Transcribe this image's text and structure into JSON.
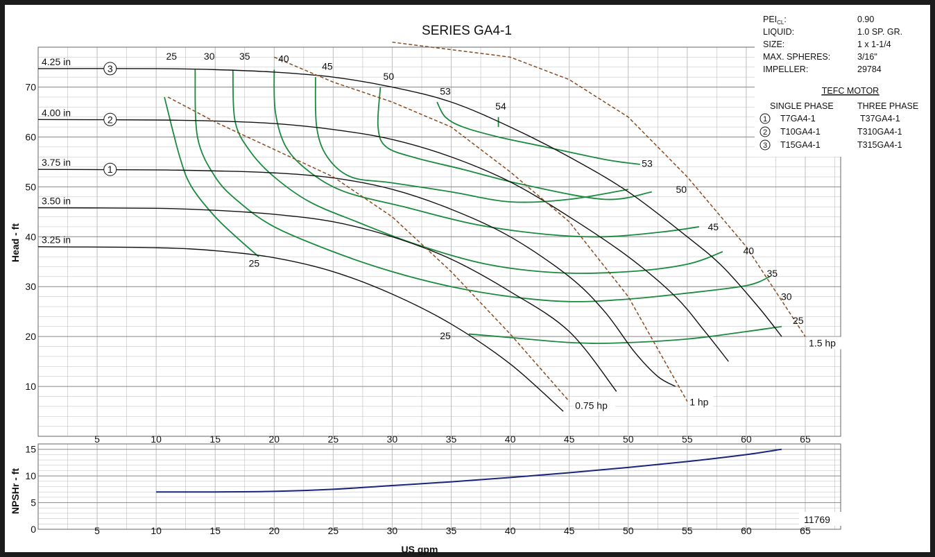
{
  "chart_data": {
    "type": "line",
    "title": "SERIES GA4-1",
    "xlabel": "US gpm",
    "ylabel": "Head - ft",
    "ylabel_npsh": "NPSHr - ft",
    "xlim": [
      0,
      68
    ],
    "ylim": [
      0,
      78
    ],
    "ylim_npsh": [
      0,
      16
    ],
    "grid": true,
    "x_ticks": [
      "5",
      "10",
      "15",
      "20",
      "25",
      "30",
      "35",
      "40",
      "45",
      "50",
      "55",
      "60",
      "65"
    ],
    "y_ticks": [
      "10",
      "20",
      "30",
      "40",
      "50",
      "60",
      "70"
    ],
    "y_ticks_npsh": [
      "0",
      "5",
      "10",
      "15"
    ],
    "impeller_curves": [
      {
        "name": "4.25 in",
        "marker": "3",
        "points": [
          [
            0,
            73.7
          ],
          [
            10,
            73.7
          ],
          [
            15,
            73.5
          ],
          [
            20,
            73
          ],
          [
            25,
            72
          ],
          [
            30,
            70
          ],
          [
            35,
            67
          ],
          [
            40,
            62
          ],
          [
            45,
            56
          ],
          [
            50,
            49
          ],
          [
            55,
            40
          ],
          [
            58,
            34
          ],
          [
            61,
            26
          ],
          [
            63,
            20
          ]
        ]
      },
      {
        "name": "4.00 in",
        "marker": "2",
        "points": [
          [
            0,
            63.5
          ],
          [
            10,
            63.4
          ],
          [
            15,
            63.2
          ],
          [
            20,
            62.7
          ],
          [
            25,
            61.5
          ],
          [
            30,
            59.5
          ],
          [
            35,
            56
          ],
          [
            40,
            51
          ],
          [
            45,
            44
          ],
          [
            50,
            36
          ],
          [
            54,
            28
          ],
          [
            56.5,
            21
          ],
          [
            58.5,
            15
          ]
        ]
      },
      {
        "name": "3.75 in",
        "marker": "1",
        "points": [
          [
            0,
            53.5
          ],
          [
            10,
            53.4
          ],
          [
            15,
            53.2
          ],
          [
            20,
            52.8
          ],
          [
            25,
            51.8
          ],
          [
            30,
            49.5
          ],
          [
            35,
            45.5
          ],
          [
            40,
            40
          ],
          [
            45,
            32
          ],
          [
            48,
            25
          ],
          [
            50.5,
            17
          ],
          [
            52.5,
            12
          ],
          [
            54,
            10
          ]
        ]
      },
      {
        "name": "3.50 in",
        "marker": "",
        "points": [
          [
            0,
            45.8
          ],
          [
            10,
            45.7
          ],
          [
            15,
            45.3
          ],
          [
            20,
            44.5
          ],
          [
            25,
            43
          ],
          [
            30,
            40
          ],
          [
            35,
            35.5
          ],
          [
            40,
            29
          ],
          [
            45,
            21
          ],
          [
            49,
            9
          ]
        ]
      },
      {
        "name": "3.25 in",
        "marker": "",
        "points": [
          [
            0,
            38
          ],
          [
            10,
            37.8
          ],
          [
            15,
            37.2
          ],
          [
            20,
            35.8
          ],
          [
            25,
            33
          ],
          [
            30,
            28.5
          ],
          [
            35,
            22.5
          ],
          [
            40,
            14.5
          ],
          [
            44.5,
            5
          ]
        ]
      }
    ],
    "efficiency_curves": [
      {
        "name": "25",
        "points": [
          [
            10.7,
            68
          ],
          [
            12,
            56
          ],
          [
            13,
            50
          ],
          [
            15,
            44
          ],
          [
            17,
            39.5
          ],
          [
            18.7,
            36
          ]
        ]
      },
      {
        "name": "25",
        "points": [
          [
            36.5,
            20.5
          ],
          [
            40,
            19.8
          ],
          [
            45,
            18.8
          ],
          [
            49,
            18.7
          ],
          [
            55,
            19.5
          ],
          [
            60,
            21
          ],
          [
            63,
            22
          ]
        ]
      },
      {
        "name": "30",
        "points": [
          [
            13.3,
            73.5
          ],
          [
            13.5,
            60
          ],
          [
            15,
            52
          ],
          [
            17,
            47
          ],
          [
            20,
            42
          ],
          [
            25,
            37
          ],
          [
            30,
            33
          ],
          [
            35,
            30
          ],
          [
            40,
            28
          ],
          [
            45,
            27
          ],
          [
            50,
            27.5
          ],
          [
            55,
            28.7
          ],
          [
            60,
            30.2
          ],
          [
            62,
            32
          ]
        ]
      },
      {
        "name": "35",
        "points": [
          [
            16.5,
            73.5
          ],
          [
            16.7,
            63
          ],
          [
            18,
            57
          ],
          [
            20,
            52
          ],
          [
            23,
            47
          ],
          [
            27,
            43
          ],
          [
            32,
            38.5
          ],
          [
            38,
            34.5
          ],
          [
            44,
            32.8
          ],
          [
            50,
            33
          ],
          [
            55,
            34.5
          ],
          [
            58,
            37
          ]
        ]
      },
      {
        "name": "40",
        "points": [
          [
            20,
            73.5
          ],
          [
            20.1,
            65
          ],
          [
            21,
            58
          ],
          [
            23,
            53
          ],
          [
            26,
            49
          ],
          [
            31,
            46
          ],
          [
            37,
            42.5
          ],
          [
            43,
            40.5
          ],
          [
            48,
            40
          ],
          [
            53,
            41
          ],
          [
            56,
            42
          ]
        ]
      },
      {
        "name": "45",
        "points": [
          [
            23.5,
            72
          ],
          [
            23.6,
            62
          ],
          [
            24.5,
            56
          ],
          [
            26.5,
            52
          ],
          [
            30,
            50.8
          ],
          [
            35,
            49
          ],
          [
            40,
            47
          ],
          [
            45,
            47.5
          ],
          [
            50,
            49.5
          ]
        ]
      },
      {
        "name": "50",
        "points": [
          [
            29,
            70
          ],
          [
            28.8,
            62
          ],
          [
            29.5,
            58
          ],
          [
            32,
            55.8
          ],
          [
            36,
            53.5
          ],
          [
            41,
            50.5
          ],
          [
            48,
            47.5
          ],
          [
            52,
            49
          ]
        ]
      },
      {
        "name": "53",
        "points": [
          [
            33.8,
            67
          ],
          [
            34.5,
            64
          ],
          [
            36,
            62
          ],
          [
            39,
            60
          ],
          [
            43,
            58
          ],
          [
            48,
            55.5
          ],
          [
            51,
            54.5
          ]
        ]
      },
      {
        "name": "54",
        "points": [
          [
            39,
            62
          ],
          [
            39,
            64
          ]
        ]
      }
    ],
    "power_curves": [
      {
        "name": "0.75 hp",
        "points": [
          [
            11,
            68
          ],
          [
            15,
            63
          ],
          [
            20,
            57.5
          ],
          [
            25,
            52
          ],
          [
            30,
            44
          ],
          [
            35,
            33
          ],
          [
            40,
            20.5
          ],
          [
            45,
            7
          ]
        ]
      },
      {
        "name": "1 hp",
        "points": [
          [
            20,
            76
          ],
          [
            25,
            71
          ],
          [
            30,
            67
          ],
          [
            35,
            62
          ],
          [
            40,
            53
          ],
          [
            45,
            43
          ],
          [
            50,
            28
          ],
          [
            55,
            7
          ]
        ]
      },
      {
        "name": "1.5 hp",
        "points": [
          [
            30,
            79
          ],
          [
            40,
            76
          ],
          [
            45,
            71.5
          ],
          [
            50,
            64
          ],
          [
            55,
            52
          ],
          [
            60,
            38
          ],
          [
            65,
            20
          ]
        ]
      }
    ],
    "npshr_curve": {
      "name": "NPSHr",
      "points": [
        [
          10,
          7
        ],
        [
          15,
          7
        ],
        [
          20,
          7.1
        ],
        [
          25,
          7.5
        ],
        [
          30,
          8.2
        ],
        [
          35,
          8.9
        ],
        [
          40,
          9.7
        ],
        [
          45,
          10.6
        ],
        [
          50,
          11.6
        ],
        [
          55,
          12.7
        ],
        [
          60,
          14
        ],
        [
          63,
          15
        ]
      ]
    },
    "annotations": {
      "impeller_labels": [
        "4.25 in",
        "4.00 in",
        "3.75 in",
        "3.50 in",
        "3.25 in"
      ],
      "efficiency_labels": [
        "25",
        "30",
        "35",
        "40",
        "45",
        "50",
        "53",
        "54",
        "53",
        "50",
        "45",
        "40",
        "35",
        "30",
        "25",
        "25",
        "25"
      ],
      "power_labels": [
        "0.75 hp",
        "1 hp",
        "1.5 hp"
      ],
      "code": "11769"
    },
    "colors": {
      "impeller": "#111111",
      "efficiency": "#1a8a3e",
      "power": "#8b4a1e",
      "npshr": "#1a237e",
      "grid": "#bdbdbd",
      "border": "#1c1c1c"
    }
  },
  "info_panel": {
    "rows": [
      {
        "key": "PEI",
        "sub": "CL",
        "suffix": ":",
        "value": "0.90"
      },
      {
        "key": "LIQUID:",
        "sub": "",
        "suffix": "",
        "value": "1.0 SP. GR."
      },
      {
        "key": "SIZE:",
        "sub": "",
        "suffix": "",
        "value": "1 x 1-1/4"
      },
      {
        "key": "MAX. SPHERES:",
        "sub": "",
        "suffix": "",
        "value": "3/16\""
      },
      {
        "key": "IMPELLER:",
        "sub": "",
        "suffix": "",
        "value": "29784"
      }
    ],
    "motor_title": "TEFC MOTOR",
    "single_phase_header": "SINGLE PHASE",
    "three_phase_header": "THREE PHASE",
    "motors": [
      {
        "num": "1",
        "single": "T7GA4-1",
        "three": "T37GA4-1"
      },
      {
        "num": "2",
        "single": "T10GA4-1",
        "three": "T310GA4-1"
      },
      {
        "num": "3",
        "single": "T15GA4-1",
        "three": "T315GA4-1"
      }
    ]
  }
}
